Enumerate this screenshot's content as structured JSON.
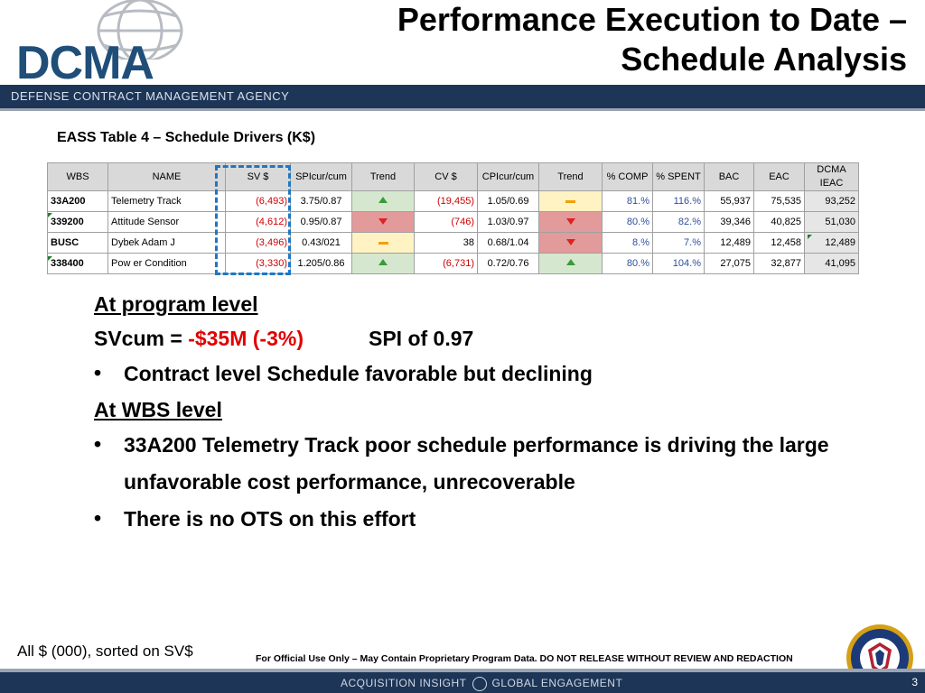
{
  "logo": {
    "text": "DCMA"
  },
  "title": {
    "line1": "Performance Execution to Date –",
    "line2": "Schedule Analysis"
  },
  "agency_band": {
    "text": "DEFENSE CONTRACT MANAGEMENT AGENCY"
  },
  "table_caption": "EASS Table 4 – Schedule Drivers (K$)",
  "table": {
    "headers": [
      "WBS",
      "NAME",
      "SV $",
      "SPIcur/cum",
      "Trend",
      "CV $",
      "CPIcur/cum",
      "Trend",
      "% COMP",
      "% SPENT",
      "BAC",
      "EAC",
      "DCMA IEAC"
    ],
    "rows": [
      {
        "wbs": "33A200",
        "name": "Telemetry Track",
        "sv": "(6,493)",
        "spi": "3.75/0.87",
        "spi_trend": "up",
        "cv": "(19,455)",
        "cpi": "1.05/0.69",
        "cpi_trend": "flat",
        "comp": "81.%",
        "spent": "116.%",
        "bac": "55,937",
        "eac": "75,535",
        "ieac": "93,252"
      },
      {
        "wbs": "339200",
        "name": "Attitude Sensor",
        "sv": "(4,612)",
        "spi": "0.95/0.87",
        "spi_trend": "down",
        "cv": "(746)",
        "cpi": "1.03/0.97",
        "cpi_trend": "down",
        "comp": "80.%",
        "spent": "82.%",
        "bac": "39,346",
        "eac": "40,825",
        "ieac": "51,030"
      },
      {
        "wbs": "BUSC",
        "name": "Dybek Adam J",
        "sv": "(3,496)",
        "spi": "0.43/021",
        "spi_trend": "flat",
        "cv": "38",
        "cpi": "0.68/1.04",
        "cpi_trend": "down",
        "comp": "8.%",
        "spent": "7.%",
        "bac": "12,489",
        "eac": "12,458",
        "ieac": "12,489"
      },
      {
        "wbs": "338400",
        "name": "Pow er Condition",
        "sv": "(3,330)",
        "spi": "1.205/0.86",
        "spi_trend": "up",
        "cv": "(6,731)",
        "cpi": "0.72/0.76",
        "cpi_trend": "up",
        "comp": "80.%",
        "spent": "104.%",
        "bac": "27,075",
        "eac": "32,877",
        "ieac": "41,095"
      }
    ]
  },
  "body": {
    "program_heading": "At program level",
    "svcum_label": "SVcum = ",
    "svcum_value": "-$35M (-3%)",
    "spi_text": "SPI of 0.97",
    "bullet1": "Contract level Schedule favorable but declining",
    "wbs_heading": "At WBS level",
    "bullet2": "33A200 Telemetry Track poor schedule performance is driving the large unfavorable cost performance, unrecoverable",
    "bullet3": "There is no OTS on this effort",
    "bullet_glyph": "•"
  },
  "note": "All $ (000), sorted on SV$",
  "disclaimer": "For Official Use Only – May Contain Proprietary Program Data. DO NOT RELEASE WITHOUT REVIEW AND REDACTION",
  "footer": {
    "left": "ACQUISITION INSIGHT",
    "right": "GLOBAL ENGAGEMENT",
    "page": "3"
  },
  "colors": {
    "navy": "#1d3557",
    "red": "#e00000",
    "pct_blue": "#2d4f9e",
    "trend_up": "#d5e8cf",
    "trend_down": "#e39a9a",
    "trend_flat": "#fff3c4",
    "highlight": "#1f77c4"
  }
}
